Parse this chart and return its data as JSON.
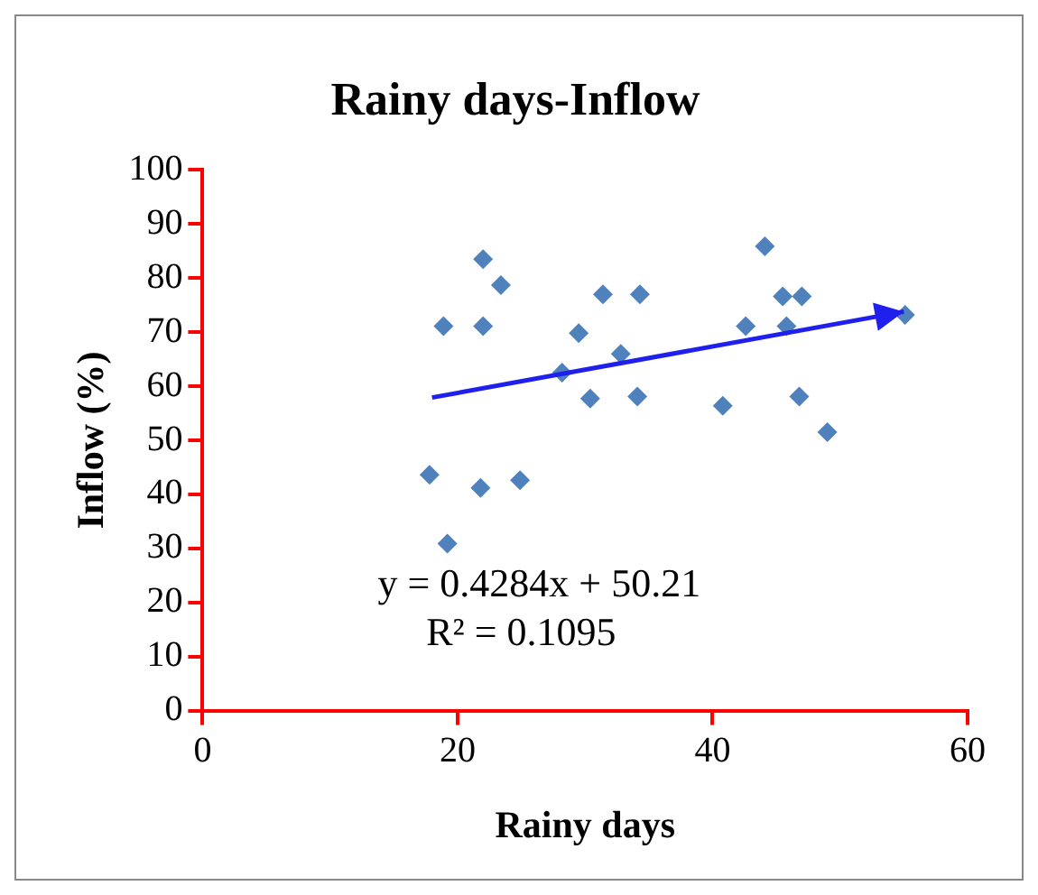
{
  "chart_data": {
    "type": "scatter",
    "title": "Rainy days-Inflow",
    "xlabel": "Rainy days",
    "ylabel": "Inflow (%)",
    "xlim": [
      0,
      60
    ],
    "xticks": [
      0,
      20,
      40,
      60
    ],
    "ylim": [
      0,
      100
    ],
    "yticks": [
      0,
      10,
      20,
      30,
      40,
      50,
      60,
      70,
      80,
      90,
      100
    ],
    "grid": false,
    "legend": false,
    "series": [
      {
        "marker": "diamond",
        "color": "#4f81bd",
        "x": [
          17.8,
          18.9,
          19.2,
          22.0,
          22.0,
          21.8,
          23.4,
          24.9,
          28.2,
          29.5,
          30.4,
          31.4,
          32.8,
          34.3,
          34.1,
          40.8,
          42.6,
          44.1,
          45.5,
          45.8,
          46.8,
          47.0,
          49.0,
          55.1
        ],
        "values": [
          43.6,
          71.1,
          30.9,
          83.5,
          71.1,
          41.2,
          78.7,
          42.6,
          62.5,
          69.8,
          57.7,
          77.0,
          66.0,
          77.0,
          58.1,
          56.4,
          71.1,
          85.9,
          76.6,
          71.1,
          58.1,
          76.6,
          51.5,
          73.2
        ]
      },
      {
        "type": "line",
        "marker": "none",
        "color": "#2020ee",
        "x": [
          18,
          55
        ],
        "values": [
          57.9,
          73.8
        ]
      }
    ],
    "annotations": [
      "y = 0.4284x + 50.21",
      "R² = 0.1095"
    ]
  }
}
